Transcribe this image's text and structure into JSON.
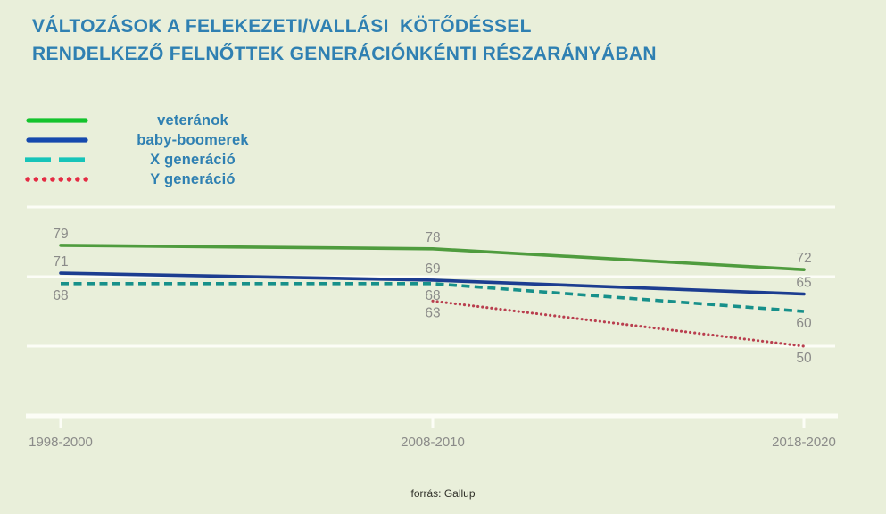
{
  "title": {
    "line1": "VÁLTOZÁSOK A FELEKEZETI/VALLÁSI  KÖTŐDÉSSEL",
    "line2": "RENDELKEZŐ FELNŐTTEK GENERÁCIÓNKÉNTI RÉSZARÁNYÁBAN"
  },
  "source": "forrás: Gallup",
  "colors": {
    "background": "#e9efda",
    "title_blue": "#2f80b2",
    "label_gray": "#8b8b89",
    "grid_white": "#fcfdf6",
    "source_text": "#2f2f28"
  },
  "chart_data": {
    "type": "line",
    "title": "Változások a felekezeti/vallási kötődéssel rendelkező felnőttek generációnkénti részarányában",
    "categories": [
      "1998-2000",
      "2008-2010",
      "2018-2020"
    ],
    "series": [
      {
        "name": "veteránok",
        "values": [
          79,
          78,
          72
        ],
        "line_style": "solid",
        "color": "#4f9c3e",
        "legend_color": "#14c32d",
        "label_side": "above"
      },
      {
        "name": "baby-boomerek",
        "values": [
          71,
          69,
          65
        ],
        "line_style": "solid",
        "color": "#1c3d90",
        "legend_color": "#1649ae",
        "label_side": "above"
      },
      {
        "name": "X generáció",
        "values": [
          68,
          68,
          60
        ],
        "line_style": "dashed",
        "color": "#17908a",
        "legend_color": "#17c4b9",
        "label_side": "below"
      },
      {
        "name": "Y generáció",
        "values": [
          null,
          63,
          50
        ],
        "line_style": "dotted",
        "color": "#b93f4f",
        "legend_color": "#e42b43",
        "label_side": "below"
      }
    ],
    "gridline_values": [
      90,
      70,
      50
    ],
    "baseline_value": 30,
    "ylim": [
      30,
      92
    ],
    "grid": true,
    "data_labels": true,
    "legend_position": "top-left",
    "xlabel": "",
    "ylabel": ""
  }
}
